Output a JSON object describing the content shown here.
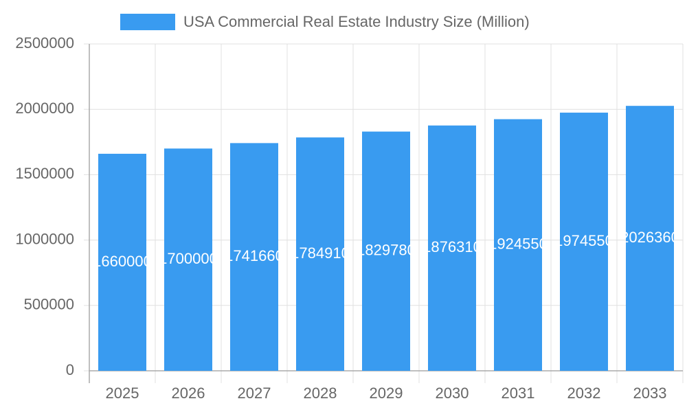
{
  "chart_data": {
    "type": "bar",
    "categories": [
      "2025",
      "2026",
      "2027",
      "2028",
      "2029",
      "2030",
      "2031",
      "2032",
      "2033"
    ],
    "series": [
      {
        "name": "USA Commercial Real Estate Industry Size (Million)",
        "color": "#399bf0",
        "values": [
          1660000,
          1700000,
          1741660,
          1784910,
          1829780,
          1876310,
          1924550,
          1974550,
          2026360
        ]
      }
    ],
    "ylim": [
      0,
      2500000
    ],
    "yticks": [
      0,
      500000,
      1000000,
      1500000,
      2000000,
      2500000
    ],
    "grid": true,
    "legend": "top"
  }
}
